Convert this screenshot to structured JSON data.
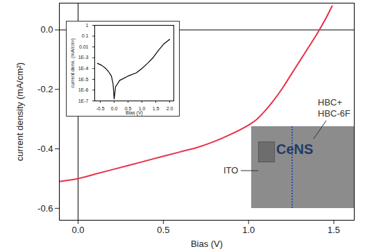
{
  "chart_data": [
    {
      "type": "line",
      "x_label": "Bias (V)",
      "y_label": "current density (mA/cm²)",
      "x": [
        -0.11,
        0,
        0.1,
        0.2,
        0.3,
        0.4,
        0.5,
        0.6,
        0.7,
        0.8,
        0.9,
        1.0,
        1.05,
        1.1,
        1.15,
        1.2,
        1.25,
        1.3,
        1.35,
        1.4,
        1.45,
        1.49
      ],
      "values": [
        -0.51,
        -0.5,
        -0.485,
        -0.47,
        -0.455,
        -0.44,
        -0.425,
        -0.41,
        -0.395,
        -0.375,
        -0.35,
        -0.32,
        -0.3,
        -0.27,
        -0.235,
        -0.195,
        -0.15,
        -0.105,
        -0.06,
        -0.015,
        0.035,
        0.08
      ],
      "color": "#e8304a",
      "xlim": [
        -0.11,
        1.62
      ],
      "ylim": [
        -0.64,
        0.09
      ],
      "xticks": [
        {
          "value": 0,
          "label": "0.0"
        },
        0.5,
        {
          "value": 1,
          "label": "1.0"
        },
        1.5
      ],
      "yticks": [
        -0.6,
        -0.4,
        -0.2,
        {
          "value": 0,
          "label": "0.0"
        }
      ],
      "grid": false,
      "annotations": [
        "HBC+",
        "HBC-6F",
        "ITO",
        "CeNS"
      ]
    },
    {
      "type": "line",
      "x_label": "Bias (V)",
      "y_label": "current dens. (mA/cm²)",
      "x": [
        -0.6,
        -0.45,
        -0.3,
        -0.2,
        -0.1,
        -0.04,
        0,
        0.05,
        0.2,
        0.5,
        0.8,
        1.0,
        1.2,
        1.4,
        1.6,
        1.8,
        2.0
      ],
      "values": [
        0.0003,
        0.0002,
        0.0001,
        5e-05,
        2e-05,
        4e-06,
        1.5e-07,
        2e-06,
        8e-06,
        2e-05,
        4e-05,
        0.0001,
        0.0003,
        0.001,
        0.005,
        0.02,
        0.05
      ],
      "color": "#000000",
      "log": "y",
      "xlim": [
        -0.7,
        2.15
      ],
      "ylim": [
        1e-07,
        1
      ],
      "xticks": [
        -0.5,
        {
          "value": 0,
          "label": "0.0"
        },
        0.5,
        {
          "value": 1,
          "label": "1.0"
        },
        1.5,
        {
          "value": 2,
          "label": "2.0"
        }
      ],
      "yticks": [
        {
          "value": 1e-07,
          "label": "1E-7"
        },
        {
          "value": 1e-06,
          "label": "1E-6"
        },
        {
          "value": 1e-05,
          "label": "1E-5"
        },
        {
          "value": 0.0001,
          "label": "1E-4"
        },
        {
          "value": 0.001,
          "label": "1E-3"
        },
        0.01,
        0.1,
        1
      ],
      "grid": false
    }
  ]
}
